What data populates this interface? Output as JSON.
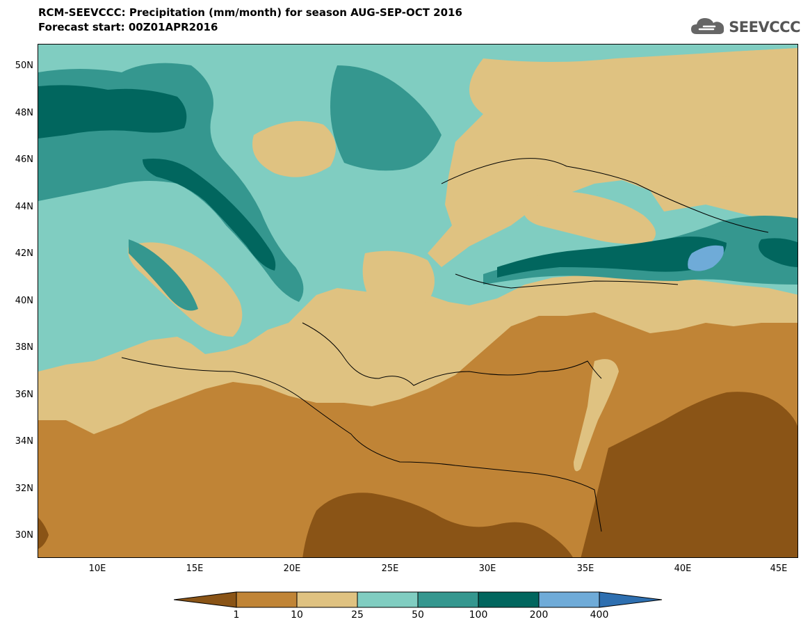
{
  "title": {
    "line1": "RCM-SEEVCCC: Precipitation (mm/month) for season AUG-SEP-OCT 2016",
    "line2": "Forecast start: 00Z01APR2016"
  },
  "logo": {
    "text": "SEEVCCC",
    "icon": "cloud-icon"
  },
  "map": {
    "lat_labels": [
      "50N",
      "48N",
      "46N",
      "44N",
      "42N",
      "40N",
      "38N",
      "36N",
      "34N",
      "32N",
      "30N"
    ],
    "lon_labels": [
      "10E",
      "15E",
      "20E",
      "25E",
      "30E",
      "35E",
      "40E",
      "45E"
    ]
  },
  "legend": {
    "thresholds": [
      "1",
      "10",
      "25",
      "50",
      "100",
      "200",
      "400"
    ],
    "colors": [
      "#8a5416",
      "#c08436",
      "#dfc281",
      "#80cdc1",
      "#35978f",
      "#01665e",
      "#6fabd8",
      "#2e6fb0"
    ]
  }
}
